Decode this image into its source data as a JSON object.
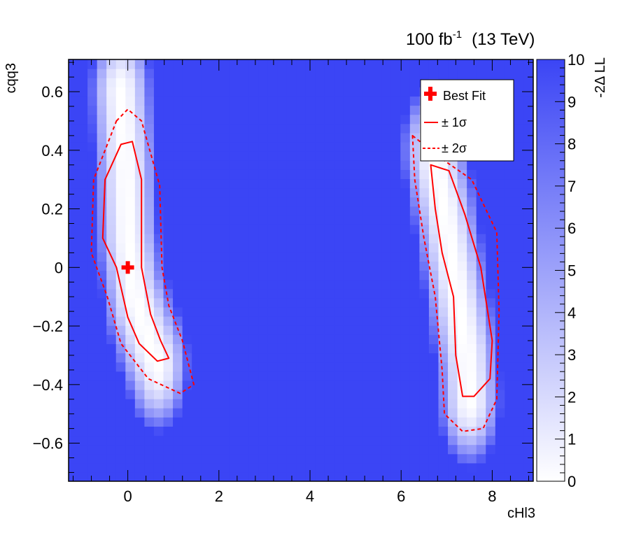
{
  "header": {
    "lumi": "100 fb",
    "lumi_exp": "-1",
    "energy": "(13 TeV)"
  },
  "chart_data": {
    "type": "heatmap",
    "title": "",
    "xlabel": "cHl3",
    "ylabel": "cqq3",
    "zlabel": "-2Δ LL",
    "xlim": [
      -1.3,
      8.9
    ],
    "ylim": [
      -0.73,
      0.71
    ],
    "zlim": [
      0,
      10
    ],
    "x_ticks": [
      "0",
      "2",
      "4",
      "6",
      "8"
    ],
    "x_tick_values": [
      0,
      2,
      4,
      6,
      8
    ],
    "y_ticks": [
      "−0.6",
      "−0.4",
      "−0.2",
      "0",
      "0.2",
      "0.4",
      "0.6"
    ],
    "y_tick_values": [
      -0.6,
      -0.4,
      -0.2,
      0,
      0.2,
      0.4,
      0.6
    ],
    "z_ticks": [
      "0",
      "1",
      "2",
      "3",
      "4",
      "5",
      "6",
      "7",
      "8",
      "9",
      "10"
    ],
    "colors": {
      "max": "#3b45f5",
      "min": "#ffffff",
      "contour": "#ff0000",
      "marker": "#ff0000"
    },
    "best_fit": {
      "x": 0.0,
      "y": 0.0
    },
    "regions": [
      {
        "spine": [
          [
            -0.15,
            0.6
          ],
          [
            -0.05,
            0.35
          ],
          [
            0.0,
            0.1
          ],
          [
            0.15,
            -0.1
          ],
          [
            0.45,
            -0.25
          ],
          [
            0.65,
            -0.33
          ]
        ],
        "one_sigma": [
          [
            -0.15,
            0.42
          ],
          [
            0.1,
            0.43
          ],
          [
            0.3,
            0.3
          ],
          [
            0.3,
            0.0
          ],
          [
            0.5,
            -0.16
          ],
          [
            0.72,
            -0.25
          ],
          [
            0.9,
            -0.31
          ],
          [
            0.65,
            -0.32
          ],
          [
            0.25,
            -0.26
          ],
          [
            0.0,
            -0.17
          ],
          [
            -0.25,
            0.0
          ],
          [
            -0.55,
            0.1
          ],
          [
            -0.5,
            0.3
          ]
        ],
        "two_sigma": [
          [
            -0.25,
            0.5
          ],
          [
            0.0,
            0.54
          ],
          [
            0.3,
            0.5
          ],
          [
            0.7,
            0.28
          ],
          [
            0.75,
            0.0
          ],
          [
            0.9,
            -0.13
          ],
          [
            1.2,
            -0.25
          ],
          [
            1.45,
            -0.4
          ],
          [
            1.15,
            -0.43
          ],
          [
            0.45,
            -0.38
          ],
          [
            -0.15,
            -0.26
          ],
          [
            -0.45,
            -0.1
          ],
          [
            -0.8,
            0.05
          ],
          [
            -0.75,
            0.3
          ]
        ]
      },
      {
        "spine": [
          [
            6.7,
            0.4
          ],
          [
            6.95,
            0.2
          ],
          [
            7.25,
            -0.1
          ],
          [
            7.45,
            -0.3
          ],
          [
            7.5,
            -0.45
          ]
        ],
        "one_sigma": [
          [
            6.65,
            0.35
          ],
          [
            7.05,
            0.33
          ],
          [
            7.4,
            0.18
          ],
          [
            7.75,
            0.0
          ],
          [
            8.0,
            -0.25
          ],
          [
            7.95,
            -0.38
          ],
          [
            7.6,
            -0.44
          ],
          [
            7.35,
            -0.44
          ],
          [
            7.2,
            -0.3
          ],
          [
            7.15,
            -0.1
          ],
          [
            6.9,
            0.05
          ],
          [
            6.75,
            0.2
          ]
        ],
        "two_sigma": [
          [
            6.25,
            0.45
          ],
          [
            6.9,
            0.37
          ],
          [
            7.55,
            0.3
          ],
          [
            8.1,
            0.12
          ],
          [
            8.15,
            -0.15
          ],
          [
            8.1,
            -0.45
          ],
          [
            7.8,
            -0.55
          ],
          [
            7.35,
            -0.56
          ],
          [
            6.95,
            -0.5
          ],
          [
            6.9,
            -0.35
          ],
          [
            6.75,
            -0.1
          ],
          [
            6.5,
            0.1
          ],
          [
            6.3,
            0.3
          ]
        ]
      }
    ],
    "legend": {
      "placement": "top-right",
      "entries": [
        {
          "label": "Best Fit",
          "style": "marker"
        },
        {
          "label": "± 1σ",
          "style": "solid"
        },
        {
          "label": "± 2σ",
          "style": "dashed"
        }
      ]
    }
  }
}
